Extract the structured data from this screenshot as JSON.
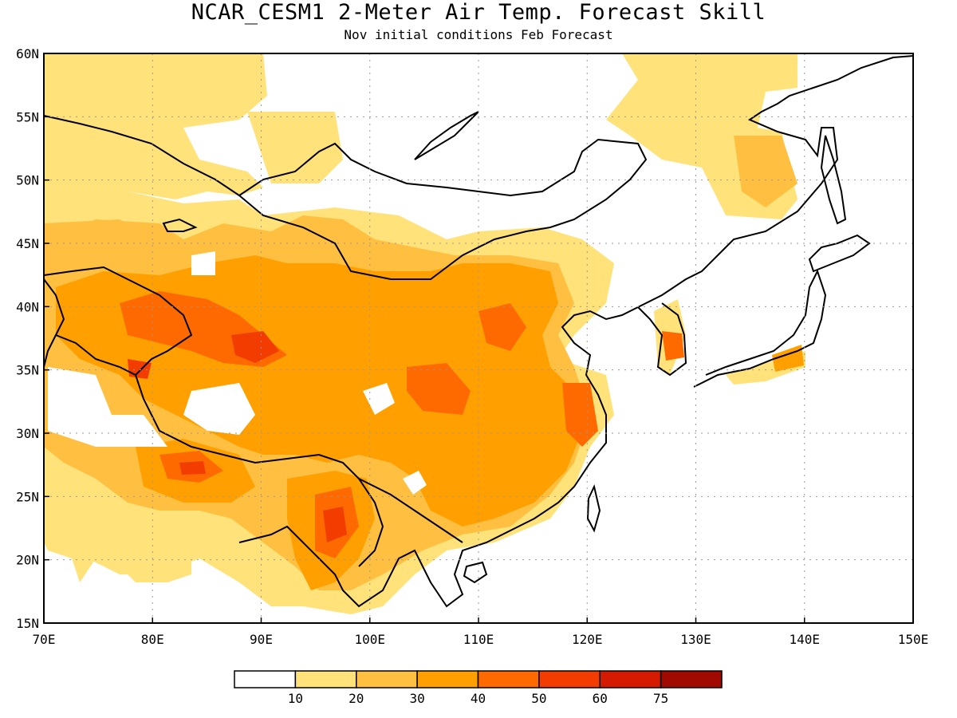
{
  "title": "NCAR_CESM1 2-Meter Air Temp. Forecast Skill",
  "subtitle": "Nov initial conditions  Feb Forecast",
  "map": {
    "lon_range": [
      70,
      150
    ],
    "lat_range": [
      15,
      60
    ],
    "lon_ticks": [
      "70E",
      "80E",
      "90E",
      "100E",
      "110E",
      "120E",
      "130E",
      "140E",
      "150E"
    ],
    "lat_ticks": [
      "15N",
      "20N",
      "25N",
      "30N",
      "35N",
      "40N",
      "45N",
      "50N",
      "55N",
      "60N"
    ],
    "grid": true,
    "coastlines": true
  },
  "colorbar": {
    "labels": [
      "10",
      "20",
      "30",
      "40",
      "50",
      "60",
      "75"
    ],
    "colors": [
      "#ffffff",
      "#ffe27a",
      "#ffbf40",
      "#ffa000",
      "#ff6a00",
      "#f23c00",
      "#d41a00",
      "#a00a00"
    ]
  }
}
